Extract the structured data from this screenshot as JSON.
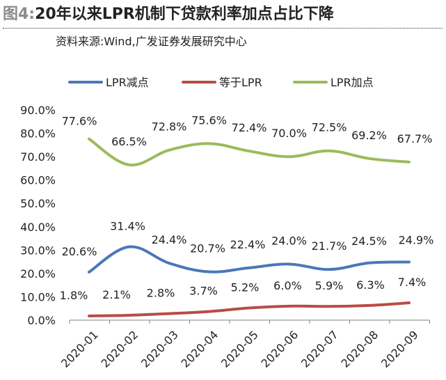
{
  "header": {
    "fig_label": "图4:",
    "title": "20年以来LPR机制下贷款利率加点占比下降",
    "source": "资料来源:Wind,广发证券发展研究中心"
  },
  "colors": {
    "series_minus": "#4a78b8",
    "series_equal": "#b84c45",
    "series_plus": "#9bbb5a",
    "axis": "#808080"
  },
  "chart_data": {
    "type": "line",
    "title": "20年以来LPR机制下贷款利率加点占比下降",
    "xlabel": "",
    "ylabel": "",
    "ylim": [
      0,
      90
    ],
    "y_ticks": [
      "0.0%",
      "10.0%",
      "20.0%",
      "30.0%",
      "40.0%",
      "50.0%",
      "60.0%",
      "70.0%",
      "80.0%",
      "90.0%"
    ],
    "categories": [
      "2020-01",
      "2020-02",
      "2020-03",
      "2020-04",
      "2020-05",
      "2020-06",
      "2020-07",
      "2020-08",
      "2020-09"
    ],
    "legend_position": "top",
    "series": [
      {
        "name": "LPR减点",
        "values": [
          20.6,
          31.4,
          24.4,
          20.7,
          22.4,
          24.0,
          21.7,
          24.5,
          24.9
        ],
        "labels": [
          "20.6%",
          "31.4%",
          "24.4%",
          "20.7%",
          "22.4%",
          "24.0%",
          "21.7%",
          "24.5%",
          "24.9%"
        ]
      },
      {
        "name": "等于LPR",
        "values": [
          1.8,
          2.1,
          2.8,
          3.7,
          5.2,
          6.0,
          5.9,
          6.3,
          7.4
        ],
        "labels": [
          "1.8%",
          "2.1%",
          "2.8%",
          "3.7%",
          "5.2%",
          "6.0%",
          "5.9%",
          "6.3%",
          "7.4%"
        ]
      },
      {
        "name": "LPR加点",
        "values": [
          77.6,
          66.5,
          72.8,
          75.6,
          72.4,
          70.0,
          72.5,
          69.2,
          67.7
        ],
        "labels": [
          "77.6%",
          "66.5%",
          "72.8%",
          "75.6%",
          "72.4%",
          "70.0%",
          "72.5%",
          "69.2%",
          "67.7%"
        ]
      }
    ]
  }
}
